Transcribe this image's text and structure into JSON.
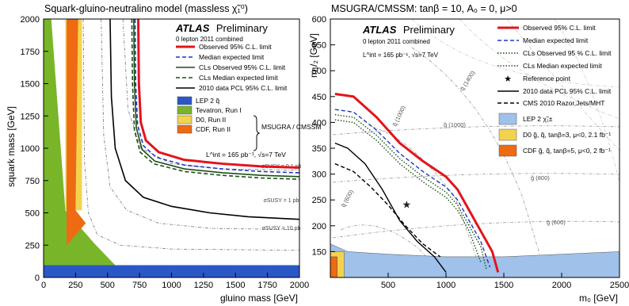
{
  "chart_data": [
    {
      "type": "line",
      "title": "Squark-gluino-neutralino model (massless χ̃₁⁰)",
      "xlabel": "gluino mass [GeV]",
      "ylabel": "squark mass [GeV]",
      "xlim": [
        0,
        2000
      ],
      "ylim": [
        0,
        2000
      ],
      "xticks": [
        "0",
        "250",
        "500",
        "750",
        "1000",
        "1250",
        "1500",
        "1750",
        "2000"
      ],
      "yticks": [
        "0",
        "250",
        "500",
        "750",
        "1000",
        "1250",
        "1500",
        "1750",
        "2000"
      ],
      "atlas": "ATLAS",
      "preliminary": "Preliminary",
      "subtitle": "0 lepton 2011 combined",
      "lumi_text": "L^int = 165 pb⁻¹, √s=7 TeV",
      "bracket_label": "MSUGRA / CMSSM",
      "series": [
        {
          "name": "Observed 95% C.L. limit",
          "color": "#e3141b",
          "style": "solid",
          "x": [
            740,
            745,
            760,
            800,
            900,
            1100,
            1400,
            1700,
            2000
          ],
          "y": [
            2000,
            1500,
            1200,
            1060,
            970,
            910,
            880,
            860,
            850
          ]
        },
        {
          "name": "Median expected limit",
          "color": "#1f35c8",
          "style": "dashed",
          "x": [
            715,
            720,
            735,
            780,
            880,
            1100,
            1400,
            1700,
            2000
          ],
          "y": [
            2000,
            1500,
            1180,
            1020,
            930,
            870,
            840,
            820,
            810
          ]
        },
        {
          "name": "CLs Observed 95% C.L. limit",
          "color": "#1c4f14",
          "style": "solid",
          "x": [
            705,
            710,
            725,
            770,
            870,
            1100,
            1400,
            1700,
            2000
          ],
          "y": [
            2000,
            1500,
            1160,
            990,
            900,
            840,
            810,
            790,
            780
          ]
        },
        {
          "name": "CLs Median expected limit",
          "color": "#1c4f14",
          "style": "dashed",
          "x": [
            690,
            695,
            710,
            755,
            860,
            1100,
            1400,
            1700,
            2000
          ],
          "y": [
            2000,
            1500,
            1140,
            970,
            880,
            820,
            790,
            770,
            760
          ]
        },
        {
          "name": "2010 data PCL 95% C.L. limit",
          "color": "#000000",
          "style": "solid",
          "x": [
            520,
            530,
            560,
            640,
            780,
            1000,
            1300,
            1600,
            2000
          ],
          "y": [
            2000,
            1400,
            1000,
            750,
            620,
            550,
            500,
            470,
            450
          ]
        }
      ],
      "regions": [
        {
          "name": "LEP 2 q̃",
          "color": "#2a57c6",
          "points": [
            [
              0,
              0
            ],
            [
              2000,
              0
            ],
            [
              2000,
              95
            ],
            [
              0,
              95
            ]
          ]
        },
        {
          "name": "Tevatron, Run I",
          "color": "#79b529",
          "points": [
            [
              0,
              95
            ],
            [
              560,
              95
            ],
            [
              400,
              260
            ],
            [
              170,
              520
            ],
            [
              60,
              2000
            ],
            [
              0,
              2000
            ]
          ]
        },
        {
          "name": "D0, Run II",
          "color": "#f3d34e",
          "points": [
            [
              170,
              520
            ],
            [
              300,
              520
            ],
            [
              300,
              2000
            ],
            [
              170,
              2000
            ]
          ]
        },
        {
          "name": "CDF, Run II",
          "color": "#ee6a13",
          "points": [
            [
              180,
              250
            ],
            [
              330,
              420
            ],
            [
              250,
              520
            ],
            [
              270,
              2000
            ],
            [
              180,
              2000
            ],
            [
              180,
              250
            ]
          ]
        }
      ],
      "xsec_contours": [
        {
          "label": "σSUSY = 0.1 pb",
          "x": [
            620,
            660,
            760,
            1000,
            1400,
            2000
          ],
          "y": [
            2000,
            1300,
            1000,
            880,
            840,
            830
          ]
        },
        {
          "label": "σSUSY = 1 pb",
          "x": [
            450,
            470,
            520,
            650,
            900,
            1300,
            2000
          ],
          "y": [
            2000,
            1100,
            700,
            520,
            420,
            380,
            370
          ]
        },
        {
          "label": "σSUSY = 10 pb",
          "x": [
            310,
            320,
            350,
            420,
            600,
            1000,
            2000
          ],
          "y": [
            2000,
            900,
            500,
            330,
            250,
            220,
            210
          ]
        }
      ]
    },
    {
      "type": "line",
      "title": "MSUGRA/CMSSM: tanβ = 10, A₀ = 0, μ>0",
      "xlabel": "m₀ [GeV]",
      "ylabel": "m₁/₂ [GeV]",
      "xlim": [
        0,
        2500
      ],
      "ylim": [
        100,
        600
      ],
      "xticks": [
        "500",
        "1000",
        "1500",
        "2000",
        "2500"
      ],
      "yticks": [
        "150",
        "200",
        "250",
        "300",
        "350",
        "400",
        "450",
        "500",
        "550",
        "600"
      ],
      "atlas": "ATLAS",
      "preliminary": "Preliminary",
      "subtitle": "0 lepton 2011 combined",
      "lumi_text": "L^int = 165 pb⁻¹, √s=7 TeV",
      "series": [
        {
          "name": "Observed 95% C.L. limit",
          "color": "#e3141b",
          "style": "solid",
          "x": [
            40,
            200,
            400,
            600,
            800,
            1000,
            1100,
            1200,
            1300,
            1400,
            1450
          ],
          "y": [
            455,
            450,
            410,
            360,
            325,
            295,
            270,
            230,
            190,
            150,
            110
          ]
        },
        {
          "name": "Median expected limit",
          "color": "#1f35c8",
          "style": "dashed",
          "x": [
            40,
            200,
            400,
            600,
            800,
            1000,
            1100,
            1200,
            1300,
            1380
          ],
          "y": [
            425,
            420,
            385,
            340,
            305,
            275,
            250,
            210,
            170,
            120
          ]
        },
        {
          "name": "CLs Observed 95 % C.L. limit",
          "color": "#1c4f14",
          "style": "dotted",
          "x": [
            40,
            200,
            400,
            600,
            800,
            1000,
            1100,
            1200,
            1300,
            1350
          ],
          "y": [
            415,
            410,
            375,
            330,
            295,
            265,
            240,
            200,
            160,
            115
          ]
        },
        {
          "name": "CLs Median expected limit",
          "color": "#1c4f14",
          "style": "dotted",
          "x": [
            40,
            200,
            400,
            600,
            800,
            1000,
            1100,
            1200,
            1300
          ],
          "y": [
            405,
            400,
            365,
            320,
            285,
            255,
            230,
            190,
            130
          ]
        },
        {
          "name": "2010 data PCL 95% C.L. limit",
          "color": "#000000",
          "style": "solid",
          "x": [
            40,
            150,
            300,
            450,
            600,
            750,
            900,
            1000
          ],
          "y": [
            360,
            350,
            320,
            270,
            210,
            170,
            140,
            110
          ]
        },
        {
          "name": "CMS 2010 Razor,Jets/MHT",
          "color": "#000000",
          "style": "dashed",
          "x": [
            40,
            200,
            350,
            500,
            650,
            800,
            950
          ],
          "y": [
            320,
            305,
            275,
            240,
            200,
            165,
            140
          ]
        }
      ],
      "reference_point": {
        "name": "Reference point",
        "x": 660,
        "y": 240
      },
      "regions": [
        {
          "name": "LEP 2 χ̃₁±",
          "color": "#9fc1ea",
          "points": [
            [
              0,
              100
            ],
            [
              2500,
              100
            ],
            [
              2500,
              150
            ],
            [
              2000,
              145
            ],
            [
              1500,
              140
            ],
            [
              1000,
              140
            ],
            [
              500,
              145
            ],
            [
              150,
              150
            ],
            [
              100,
              155
            ],
            [
              0,
              165
            ]
          ]
        },
        {
          "name": "D0 g̃, q̃, tanβ=3, μ<0, 2.1 fb⁻¹",
          "color": "#f3d34e",
          "points": [
            [
              0,
              100
            ],
            [
              120,
              100
            ],
            [
              120,
              150
            ],
            [
              0,
              150
            ]
          ]
        },
        {
          "name": "CDF g̃, q̃, tanβ=5, μ<0, 2 fb⁻¹",
          "color": "#ee6a13",
          "points": [
            [
              0,
              100
            ],
            [
              60,
              100
            ],
            [
              60,
              140
            ],
            [
              0,
              140
            ]
          ]
        }
      ],
      "mass_contours": [
        {
          "label": "q̃ (600)"
        },
        {
          "label": "q̃ (1000)"
        },
        {
          "label": "q̃ (1400)"
        },
        {
          "label": "g̃ (600)"
        },
        {
          "label": "g̃ (800)"
        },
        {
          "label": "g̃ (1000)"
        }
      ]
    }
  ]
}
